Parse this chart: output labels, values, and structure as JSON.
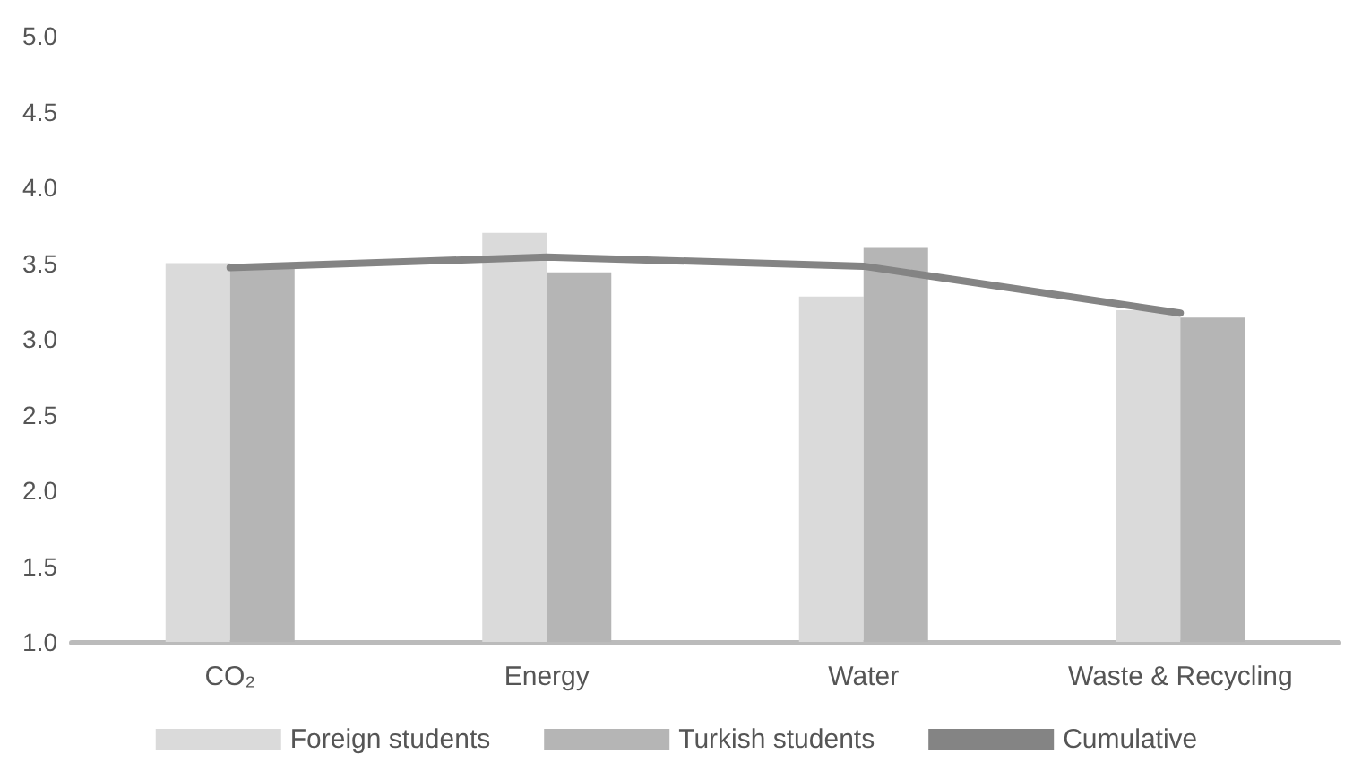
{
  "chart_data": {
    "type": "bar",
    "categories": [
      "CO₂",
      "Energy",
      "Water",
      "Waste & Recycling"
    ],
    "series": [
      {
        "name": "Foreign students",
        "color": "#dadada",
        "values": [
          3.5,
          3.7,
          3.28,
          3.19
        ]
      },
      {
        "name": "Turkish students",
        "color": "#b5b5b5",
        "values": [
          3.49,
          3.44,
          3.6,
          3.14
        ]
      },
      {
        "name": "Cumulative",
        "type": "line",
        "color": "#848484",
        "values": [
          3.47,
          3.54,
          3.48,
          3.17
        ]
      }
    ],
    "ylim": [
      1,
      5
    ],
    "yticks": [
      {
        "value": 1,
        "label": "1.0"
      },
      1.5,
      {
        "value": 2,
        "label": "2.0"
      },
      2.5,
      {
        "value": 3,
        "label": "3.0"
      },
      3.5,
      {
        "value": 4,
        "label": "4.0"
      },
      4.5,
      {
        "value": 5,
        "label": "5.0"
      }
    ],
    "grid": false,
    "legend": "bottom",
    "marker": "none",
    "line_style": "solid"
  }
}
